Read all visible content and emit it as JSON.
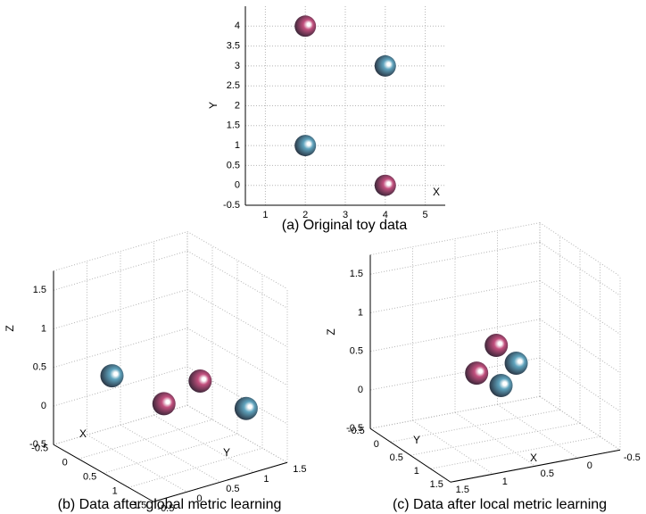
{
  "chart_data": [
    {
      "type": "scatter",
      "title": "(a) Original toy data",
      "xlabel": "X",
      "ylabel": "Y",
      "xlim": [
        0.5,
        5.5
      ],
      "ylim": [
        -0.5,
        4.5
      ],
      "xticks": [
        1,
        2,
        3,
        4,
        5
      ],
      "yticks": [
        -0.5,
        0,
        0.5,
        1,
        1.5,
        2,
        2.5,
        3,
        3.5,
        4
      ],
      "grid": true,
      "series": [
        {
          "color": "#c2507e",
          "x": [
            2,
            4
          ],
          "y": [
            4,
            0
          ]
        },
        {
          "color": "#5fa3bd",
          "x": [
            4,
            2
          ],
          "y": [
            3,
            1
          ]
        }
      ]
    },
    {
      "type": "scatter3d",
      "title": "(b) Data after global metric learning",
      "xlabel": "X",
      "ylabel": "Y",
      "zlabel": "Z",
      "xlim": [
        -0.5,
        1.5
      ],
      "ylim": [
        -0.5,
        1.5
      ],
      "zlim": [
        -0.5,
        1.75
      ],
      "xticks": [
        -0.5,
        0,
        0.5,
        1,
        1.5
      ],
      "yticks": [
        -0.5,
        0,
        0.5,
        1,
        1.5
      ],
      "zticks": [
        -0.5,
        0,
        0.5,
        1,
        1.5
      ],
      "grid": true,
      "series": [
        {
          "color": "#c2507e",
          "x": [
            1,
            0.72
          ],
          "y": [
            0.03,
            0.78
          ],
          "z": [
            0.45,
            0.45
          ]
        },
        {
          "color": "#5fa3bd",
          "x": [
            0,
            1.4
          ],
          "y": [
            0,
            0.96
          ],
          "z": [
            0.45,
            0.3
          ]
        }
      ]
    },
    {
      "type": "scatter3d",
      "title": "(c) Data after local metric learning",
      "xlabel": "X",
      "ylabel": "Y",
      "zlabel": "Z",
      "xlim": [
        -0.5,
        1.5
      ],
      "ylim": [
        -0.5,
        1.5
      ],
      "zlim": [
        -0.5,
        1.75
      ],
      "xticks": [
        -0.5,
        0,
        0.5,
        1,
        1.5
      ],
      "yticks": [
        -0.5,
        0,
        0.5,
        1,
        1.5
      ],
      "zticks": [
        -0.5,
        0,
        0.5,
        1,
        1.5
      ],
      "grid": true,
      "series": [
        {
          "color": "#c2507e",
          "x": [
            0.26,
            0.61
          ],
          "y": [
            0.02,
            0.27
          ],
          "z": [
            0.5,
            0.3
          ]
        },
        {
          "color": "#5fa3bd",
          "x": [
            0.11,
            0.45
          ],
          "y": [
            0.2,
            0.54
          ],
          "z": [
            0.3,
            0.2
          ]
        }
      ]
    }
  ]
}
